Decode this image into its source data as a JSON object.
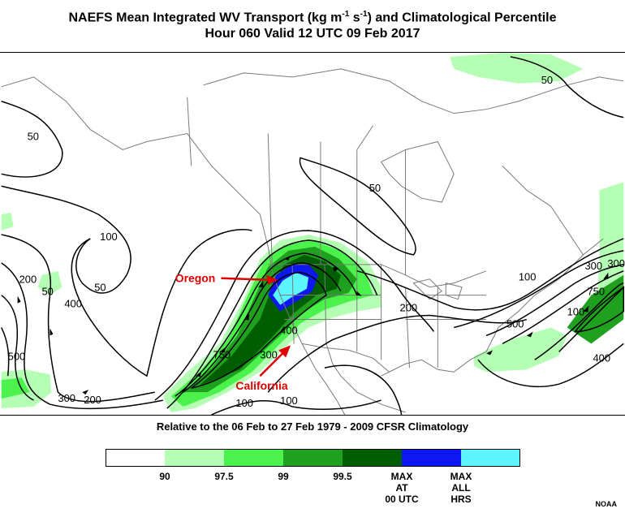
{
  "title": {
    "prefix": "NAEFS Mean Integrated WV Transport (kg m",
    "sup1": "-1",
    "mid": " s",
    "sup2": "-1",
    "suffix": ") and Climatological Percentile",
    "line2": "Hour 060 Valid 12 UTC 09 Feb 2017"
  },
  "subtitle": "Relative to the 06 Feb to 27 Feb 1979 - 2009 CFSR Climatology",
  "annotations": {
    "oregon": "Oregon",
    "california": "California"
  },
  "contour_labels": [
    "50",
    "50",
    "50",
    "50",
    "100",
    "100",
    "100",
    "100",
    "200",
    "200",
    "200",
    "300",
    "300",
    "300",
    "400",
    "400",
    "400",
    "500",
    "500",
    "750",
    "50",
    "100",
    "300",
    "750"
  ],
  "legend": {
    "colors": [
      "#ffffff",
      "#b5ffb5",
      "#4cf24c",
      "#1fa11f",
      "#005e00",
      "#0f17f0",
      "#5cf5ff"
    ],
    "ticks": [
      "90",
      "97.5",
      "99",
      "99.5",
      "MAX\nAT\n00 UTC",
      "MAX\nALL\nHRS"
    ]
  },
  "credit": "NOAA"
}
